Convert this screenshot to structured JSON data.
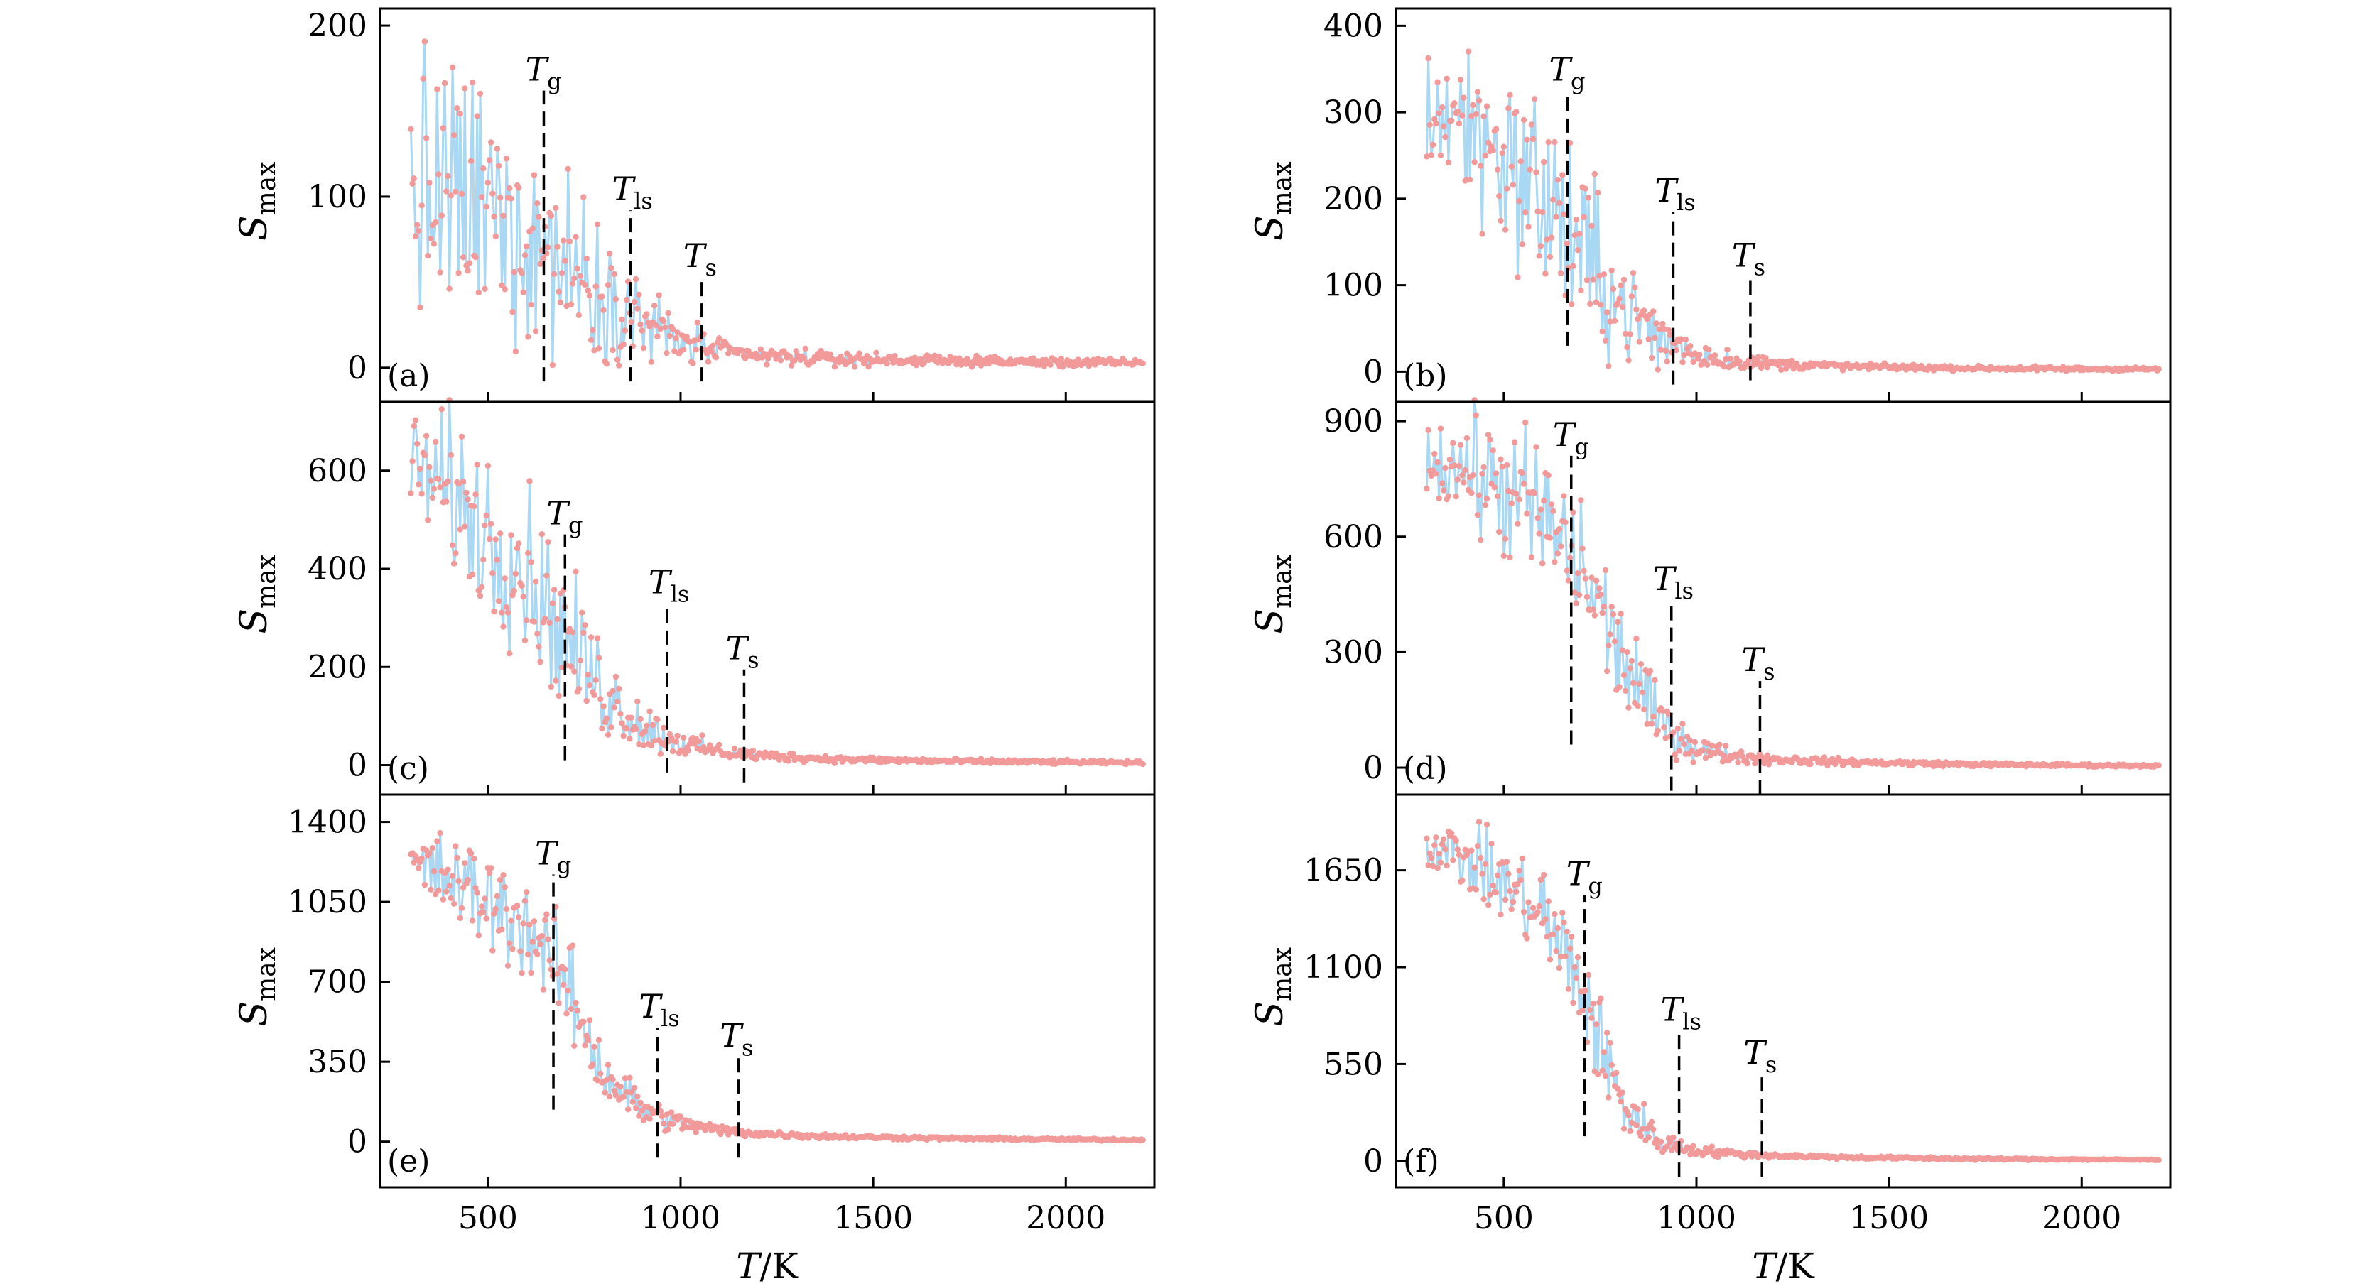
{
  "colors": {
    "points": "#F29A9A",
    "line": "#A9D8F5",
    "frame": "#000000",
    "marker": "#000000"
  },
  "chart_data": [
    {
      "type": "line",
      "panel_label": "(a)",
      "ylabel": "S",
      "ylabel_sub": "max",
      "xlabel": "",
      "xlim": [
        220,
        2230
      ],
      "ylim": [
        -20,
        210
      ],
      "x_ticks": [
        500,
        1000,
        1500,
        2000
      ],
      "y_ticks": [
        0,
        100,
        200
      ],
      "envelope": {
        "x": [
          300,
          400,
          500,
          600,
          700,
          800,
          900,
          1000,
          1100,
          1200,
          1400,
          1700,
          2000,
          2200
        ],
        "y": [
          100,
          100,
          92,
          80,
          62,
          45,
          28,
          15,
          9,
          7,
          5,
          4,
          3,
          3
        ],
        "spread": [
          60,
          62,
          58,
          52,
          42,
          32,
          18,
          10,
          6,
          4,
          3,
          2,
          2,
          1.5
        ]
      },
      "markers": [
        {
          "label": "g",
          "x": 645,
          "y_range": [
            -8,
            162
          ]
        },
        {
          "label": "ls",
          "x": 870,
          "y_range": [
            -8,
            92
          ]
        },
        {
          "label": "s",
          "x": 1055,
          "y_range": [
            -8,
            53
          ]
        }
      ]
    },
    {
      "type": "line",
      "panel_label": "(b)",
      "ylabel": "S",
      "ylabel_sub": "max",
      "xlabel": "",
      "xlim": [
        220,
        2230
      ],
      "ylim": [
        -35,
        420
      ],
      "x_ticks": [
        500,
        1000,
        1500,
        2000
      ],
      "y_ticks": [
        0,
        100,
        200,
        300,
        400
      ],
      "envelope": {
        "x": [
          300,
          400,
          500,
          600,
          700,
          800,
          900,
          1000,
          1100,
          1200,
          1400,
          1700,
          2000,
          2200
        ],
        "y": [
          300,
          290,
          250,
          205,
          140,
          80,
          40,
          20,
          12,
          9,
          6,
          4,
          3,
          3
        ],
        "spread": [
          60,
          70,
          80,
          90,
          80,
          55,
          28,
          14,
          8,
          5,
          3,
          2,
          2,
          1.5
        ]
      },
      "markers": [
        {
          "label": "g",
          "x": 665,
          "y_range": [
            30,
            325
          ]
        },
        {
          "label": "ls",
          "x": 940,
          "y_range": [
            -15,
            185
          ]
        },
        {
          "label": "s",
          "x": 1140,
          "y_range": [
            -10,
            110
          ]
        }
      ]
    },
    {
      "type": "line",
      "panel_label": "(c)",
      "ylabel": "S",
      "ylabel_sub": "max",
      "xlabel": "",
      "xlim": [
        220,
        2230
      ],
      "ylim": [
        -60,
        740
      ],
      "x_ticks": [
        500,
        1000,
        1500,
        2000
      ],
      "y_ticks": [
        0,
        200,
        400,
        600
      ],
      "envelope": {
        "x": [
          300,
          400,
          500,
          600,
          700,
          800,
          900,
          1000,
          1100,
          1200,
          1400,
          1700,
          2000,
          2200
        ],
        "y": [
          610,
          560,
          470,
          400,
          260,
          150,
          80,
          45,
          28,
          20,
          12,
          8,
          6,
          5
        ],
        "spread": [
          80,
          120,
          130,
          130,
          110,
          75,
          40,
          20,
          12,
          8,
          5,
          4,
          3,
          2
        ]
      },
      "markers": [
        {
          "label": "g",
          "x": 700,
          "y_range": [
            10,
            470
          ]
        },
        {
          "label": "ls",
          "x": 965,
          "y_range": [
            -15,
            330
          ]
        },
        {
          "label": "s",
          "x": 1165,
          "y_range": [
            -35,
            195
          ]
        }
      ]
    },
    {
      "type": "line",
      "panel_label": "(d)",
      "ylabel": "S",
      "ylabel_sub": "max",
      "xlabel": "",
      "xlim": [
        220,
        2230
      ],
      "ylim": [
        -70,
        950
      ],
      "x_ticks": [
        500,
        1000,
        1500,
        2000
      ],
      "y_ticks": [
        0,
        300,
        600,
        900
      ],
      "envelope": {
        "x": [
          300,
          400,
          500,
          600,
          700,
          800,
          900,
          1000,
          1100,
          1200,
          1400,
          1700,
          2000,
          2200
        ],
        "y": [
          800,
          780,
          720,
          650,
          520,
          300,
          120,
          50,
          30,
          22,
          14,
          9,
          6,
          5
        ],
        "spread": [
          70,
          110,
          140,
          150,
          140,
          110,
          60,
          25,
          14,
          10,
          6,
          4,
          3,
          2
        ]
      },
      "markers": [
        {
          "label": "g",
          "x": 675,
          "y_range": [
            60,
            810
          ]
        },
        {
          "label": "ls",
          "x": 935,
          "y_range": [
            -60,
            435
          ]
        },
        {
          "label": "s",
          "x": 1165,
          "y_range": [
            -70,
            225
          ]
        }
      ]
    },
    {
      "type": "line",
      "panel_label": "(e)",
      "ylabel": "S",
      "ylabel_sub": "max",
      "xlabel": "T/K",
      "xlim": [
        220,
        2230
      ],
      "ylim": [
        -200,
        1520
      ],
      "x_ticks": [
        500,
        1000,
        1500,
        2000
      ],
      "y_ticks": [
        0,
        350,
        700,
        1050,
        1400
      ],
      "envelope": {
        "x": [
          300,
          400,
          500,
          600,
          700,
          800,
          900,
          1000,
          1100,
          1200,
          1400,
          1700,
          2000,
          2200
        ],
        "y": [
          1220,
          1150,
          1050,
          950,
          700,
          300,
          140,
          80,
          50,
          35,
          22,
          14,
          10,
          8
        ],
        "spread": [
          100,
          150,
          170,
          170,
          170,
          110,
          55,
          30,
          18,
          12,
          8,
          5,
          4,
          3
        ]
      },
      "markers": [
        {
          "label": "g",
          "x": 670,
          "y_range": [
            140,
            1170
          ]
        },
        {
          "label": "ls",
          "x": 940,
          "y_range": [
            -70,
            500
          ]
        },
        {
          "label": "s",
          "x": 1150,
          "y_range": [
            -70,
            370
          ]
        }
      ]
    },
    {
      "type": "line",
      "panel_label": "(f)",
      "ylabel": "S",
      "ylabel_sub": "max",
      "xlabel": "T/K",
      "xlim": [
        220,
        2230
      ],
      "ylim": [
        -150,
        2080
      ],
      "x_ticks": [
        500,
        1000,
        1500,
        2000
      ],
      "y_ticks": [
        0,
        550,
        1100,
        1650
      ],
      "envelope": {
        "x": [
          300,
          400,
          500,
          600,
          700,
          800,
          900,
          1000,
          1100,
          1200,
          1400,
          1700,
          2000,
          2200
        ],
        "y": [
          1800,
          1720,
          1580,
          1400,
          1000,
          350,
          110,
          60,
          40,
          30,
          20,
          12,
          8,
          6
        ],
        "spread": [
          90,
          140,
          170,
          220,
          240,
          170,
          50,
          25,
          15,
          10,
          7,
          5,
          3,
          2
        ]
      },
      "markers": [
        {
          "label": "g",
          "x": 710,
          "y_range": [
            140,
            1510
          ]
        },
        {
          "label": "ls",
          "x": 955,
          "y_range": [
            -90,
            740
          ]
        },
        {
          "label": "s",
          "x": 1170,
          "y_range": [
            -90,
            495
          ]
        }
      ]
    }
  ]
}
